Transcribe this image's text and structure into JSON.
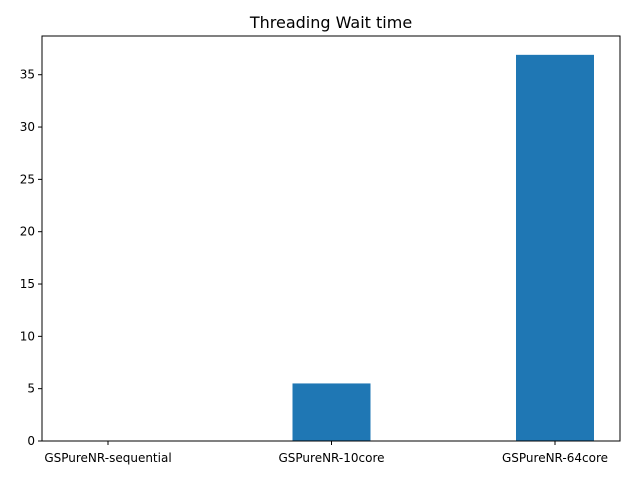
{
  "chart_data": {
    "type": "bar",
    "title": "Threading Wait time",
    "xlabel": "",
    "ylabel": "",
    "categories": [
      "GSPureNR-sequential",
      "GSPureNR-10core",
      "GSPureNR-64core"
    ],
    "values": [
      0,
      5.5,
      36.9
    ],
    "ylim": [
      0,
      38.7
    ],
    "yticks": [
      0,
      5,
      10,
      15,
      20,
      25,
      30,
      35
    ],
    "bar_color": "#1f77b4",
    "grid": false,
    "legend": "none"
  }
}
